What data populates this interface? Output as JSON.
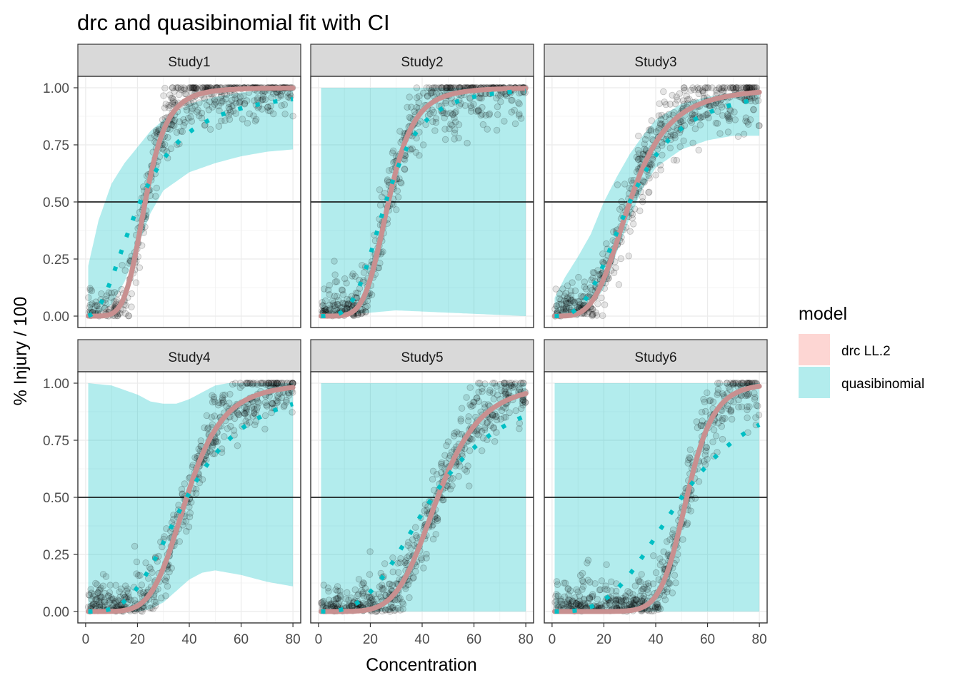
{
  "chart_data": {
    "type": "scatter",
    "title": "drc and quasibinomial fit with CI",
    "xlabel": "Concentration",
    "ylabel": "% Injury / 100",
    "xlim": [
      -3,
      83
    ],
    "ylim": [
      -0.05,
      1.05
    ],
    "x_ticks": [
      0,
      20,
      40,
      60,
      80
    ],
    "y_ticks": [
      0.0,
      0.25,
      0.5,
      0.75,
      1.0
    ],
    "y_tick_labels": [
      "0.00",
      "0.25",
      "0.50",
      "0.75",
      "1.00"
    ],
    "reference_line_y": 0.5,
    "grid": true,
    "legend": {
      "title": "model",
      "placement": "right",
      "entries": [
        {
          "name": "drc LL.2",
          "color": "#F8766D"
        },
        {
          "name": "quasibinomial",
          "color": "#00BFC4"
        }
      ]
    },
    "colors": {
      "drc": "#F8766D",
      "drc_line": "#C89090",
      "quasibinomial": "#00BFC4",
      "points": "#000000",
      "strip_bg": "#D9D9D9"
    },
    "panels": [
      {
        "label": "Study1",
        "drc": {
          "ed50": 23,
          "slope": 5.5
        },
        "quasibinomial": {
          "ed50": 21,
          "slope": 2.2
        },
        "ci_lower": [
          [
            1,
            0.0
          ],
          [
            5,
            0.01
          ],
          [
            10,
            0.05
          ],
          [
            15,
            0.15
          ],
          [
            20,
            0.3
          ],
          [
            25,
            0.45
          ],
          [
            30,
            0.55
          ],
          [
            40,
            0.63
          ],
          [
            50,
            0.67
          ],
          [
            60,
            0.7
          ],
          [
            70,
            0.72
          ],
          [
            80,
            0.73
          ]
        ],
        "ci_upper": [
          [
            1,
            0.22
          ],
          [
            5,
            0.42
          ],
          [
            10,
            0.58
          ],
          [
            15,
            0.67
          ],
          [
            20,
            0.74
          ],
          [
            25,
            0.81
          ],
          [
            30,
            0.86
          ],
          [
            40,
            0.93
          ],
          [
            50,
            0.96
          ],
          [
            60,
            0.98
          ],
          [
            80,
            1.0
          ]
        ]
      },
      {
        "label": "Study2",
        "drc": {
          "ed50": 27,
          "slope": 5.5
        },
        "quasibinomial": {
          "ed50": 26,
          "slope": 3.8
        },
        "ci_lower": [
          [
            1,
            0.0
          ],
          [
            10,
            0.005
          ],
          [
            20,
            0.015
          ],
          [
            30,
            0.025
          ],
          [
            40,
            0.02
          ],
          [
            50,
            0.015
          ],
          [
            60,
            0.01
          ],
          [
            70,
            0.005
          ],
          [
            80,
            0.0
          ]
        ],
        "ci_upper": [
          [
            1,
            1.0
          ],
          [
            80,
            1.0
          ]
        ]
      },
      {
        "label": "Study3",
        "drc": {
          "ed50": 30,
          "slope": 4.0
        },
        "quasibinomial": {
          "ed50": 30,
          "slope": 3.0
        },
        "ci_lower": [
          [
            1,
            0.0
          ],
          [
            10,
            0.01
          ],
          [
            15,
            0.04
          ],
          [
            20,
            0.12
          ],
          [
            25,
            0.28
          ],
          [
            30,
            0.43
          ],
          [
            35,
            0.56
          ],
          [
            40,
            0.65
          ],
          [
            50,
            0.73
          ],
          [
            60,
            0.77
          ],
          [
            70,
            0.79
          ],
          [
            80,
            0.79
          ]
        ],
        "ci_upper": [
          [
            1,
            0.08
          ],
          [
            5,
            0.17
          ],
          [
            10,
            0.26
          ],
          [
            15,
            0.36
          ],
          [
            20,
            0.5
          ],
          [
            25,
            0.61
          ],
          [
            30,
            0.71
          ],
          [
            35,
            0.79
          ],
          [
            40,
            0.86
          ],
          [
            50,
            0.93
          ],
          [
            60,
            0.96
          ],
          [
            70,
            0.98
          ],
          [
            80,
            0.99
          ]
        ]
      },
      {
        "label": "Study4",
        "drc": {
          "ed50": 39,
          "slope": 5.5
        },
        "quasibinomial": {
          "ed50": 39,
          "slope": 3.2
        },
        "ci_lower": [
          [
            1,
            0.0
          ],
          [
            10,
            0.0
          ],
          [
            20,
            0.0
          ],
          [
            25,
            0.01
          ],
          [
            30,
            0.04
          ],
          [
            35,
            0.09
          ],
          [
            40,
            0.14
          ],
          [
            45,
            0.17
          ],
          [
            50,
            0.18
          ],
          [
            55,
            0.17
          ],
          [
            60,
            0.16
          ],
          [
            70,
            0.13
          ],
          [
            80,
            0.11
          ]
        ],
        "ci_upper": [
          [
            1,
            1.0
          ],
          [
            10,
            0.99
          ],
          [
            20,
            0.95
          ],
          [
            25,
            0.92
          ],
          [
            30,
            0.91
          ],
          [
            35,
            0.91
          ],
          [
            40,
            0.93
          ],
          [
            45,
            0.96
          ],
          [
            50,
            0.99
          ],
          [
            55,
            1.0
          ],
          [
            80,
            1.0
          ]
        ]
      },
      {
        "label": "Study5",
        "drc": {
          "ed50": 46,
          "slope": 5.5
        },
        "quasibinomial": {
          "ed50": 44,
          "slope": 3.0
        },
        "ci_lower": [
          [
            1,
            0.0
          ],
          [
            80,
            0.0
          ]
        ],
        "ci_upper": [
          [
            1,
            1.0
          ],
          [
            80,
            1.0
          ]
        ]
      },
      {
        "label": "Study6",
        "drc": {
          "ed50": 52,
          "slope": 10.0
        },
        "quasibinomial": {
          "ed50": 50,
          "slope": 3.2
        },
        "ci_lower": [
          [
            1,
            0.0
          ],
          [
            80,
            0.0
          ]
        ],
        "ci_upper": [
          [
            1,
            1.0
          ],
          [
            80,
            1.0
          ]
        ]
      }
    ]
  }
}
